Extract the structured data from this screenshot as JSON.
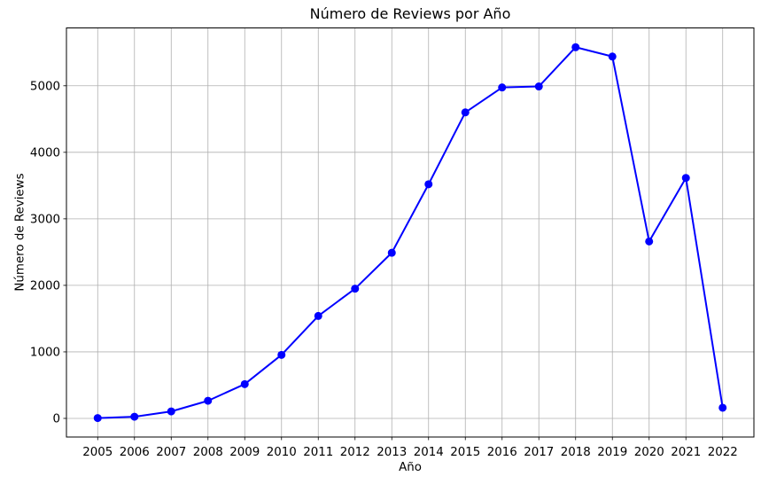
{
  "chart_data": {
    "type": "line",
    "title": "Número de Reviews por Año",
    "xlabel": "Año",
    "ylabel": "Número de Reviews",
    "series": [
      {
        "name": "Número de Reviews",
        "x": [
          2005,
          2006,
          2007,
          2008,
          2009,
          2010,
          2011,
          2012,
          2013,
          2014,
          2015,
          2016,
          2017,
          2018,
          2019,
          2020,
          2021,
          2022
        ],
        "values": [
          5,
          25,
          105,
          265,
          515,
          955,
          1540,
          1950,
          2490,
          3520,
          4600,
          4975,
          4990,
          5580,
          5440,
          2660,
          3615,
          160
        ]
      }
    ],
    "xlim": [
      2004.15,
      2022.85
    ],
    "ylim": [
      -280,
      5870
    ],
    "yticks": [
      0,
      1000,
      2000,
      3000,
      4000,
      5000
    ],
    "grid": true,
    "legend": "none",
    "line_color": "#0000ff",
    "marker": "circle",
    "marker_color": "#0000ff",
    "grid_color": "#b0b0b0",
    "spine_color": "#000000",
    "background_color": "#ffffff"
  }
}
